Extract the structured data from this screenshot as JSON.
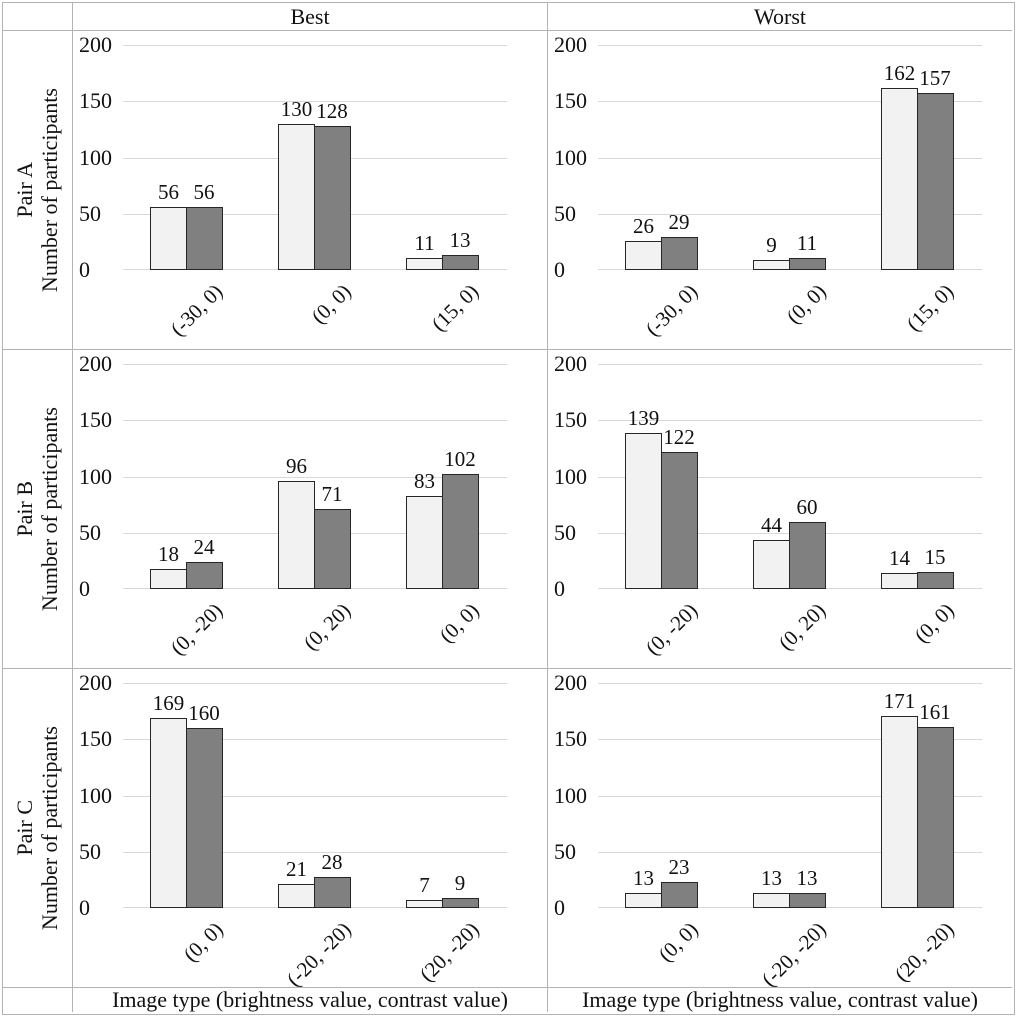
{
  "figure": {
    "column_headers": [
      "Best",
      "Worst"
    ],
    "row_labels": [
      "Pair A",
      "Pair B",
      "Pair C"
    ],
    "y_axis_label": "Number of participants",
    "x_axis_label": "Image type (brightness value, contrast value)"
  },
  "chart_data": {
    "type": "bar",
    "layout": "3 rows (Pair A, Pair B, Pair C) x 2 columns (Best, Worst) of grouped bar panels",
    "ylabel": "Number of participants",
    "xlabel": "Image type (brightness value, contrast value)",
    "ylim": [
      0,
      200
    ],
    "yticks": [
      0,
      50,
      100,
      150,
      200
    ],
    "grid": true,
    "legend": "none",
    "colors": {
      "light_bar_fill": "#f2f2f2",
      "dark_bar_fill": "#808080",
      "bar_border": "#262626",
      "gridline": "#d9d9d9",
      "table_border": "#b3b3b3"
    },
    "panels": [
      {
        "row": "Pair A",
        "col": "Best",
        "categories": [
          "(-30, 0)",
          "(0, 0)",
          "(15, 0)"
        ],
        "series": [
          {
            "name": "light",
            "values": [
              56,
              130,
              11
            ]
          },
          {
            "name": "dark",
            "values": [
              56,
              128,
              13
            ]
          }
        ]
      },
      {
        "row": "Pair A",
        "col": "Worst",
        "categories": [
          "(-30, 0)",
          "(0, 0)",
          "(15, 0)"
        ],
        "series": [
          {
            "name": "light",
            "values": [
              26,
              9,
              162
            ]
          },
          {
            "name": "dark",
            "values": [
              29,
              11,
              157
            ]
          }
        ]
      },
      {
        "row": "Pair B",
        "col": "Best",
        "categories": [
          "(0, -20)",
          "(0, 20)",
          "(0, 0)"
        ],
        "series": [
          {
            "name": "light",
            "values": [
              18,
              96,
              83
            ]
          },
          {
            "name": "dark",
            "values": [
              24,
              71,
              102
            ]
          }
        ]
      },
      {
        "row": "Pair B",
        "col": "Worst",
        "categories": [
          "(0, -20)",
          "(0, 20)",
          "(0, 0)"
        ],
        "series": [
          {
            "name": "light",
            "values": [
              139,
              44,
              14
            ]
          },
          {
            "name": "dark",
            "values": [
              122,
              60,
              15
            ]
          }
        ]
      },
      {
        "row": "Pair C",
        "col": "Best",
        "categories": [
          "(0, 0)",
          "(-20, -20)",
          "(20, -20)"
        ],
        "series": [
          {
            "name": "light",
            "values": [
              169,
              21,
              7
            ]
          },
          {
            "name": "dark",
            "values": [
              160,
              28,
              9
            ]
          }
        ]
      },
      {
        "row": "Pair C",
        "col": "Worst",
        "categories": [
          "(0, 0)",
          "(-20, -20)",
          "(20, -20)"
        ],
        "series": [
          {
            "name": "light",
            "values": [
              13,
              13,
              171
            ]
          },
          {
            "name": "dark",
            "values": [
              23,
              13,
              161
            ]
          }
        ]
      }
    ]
  }
}
